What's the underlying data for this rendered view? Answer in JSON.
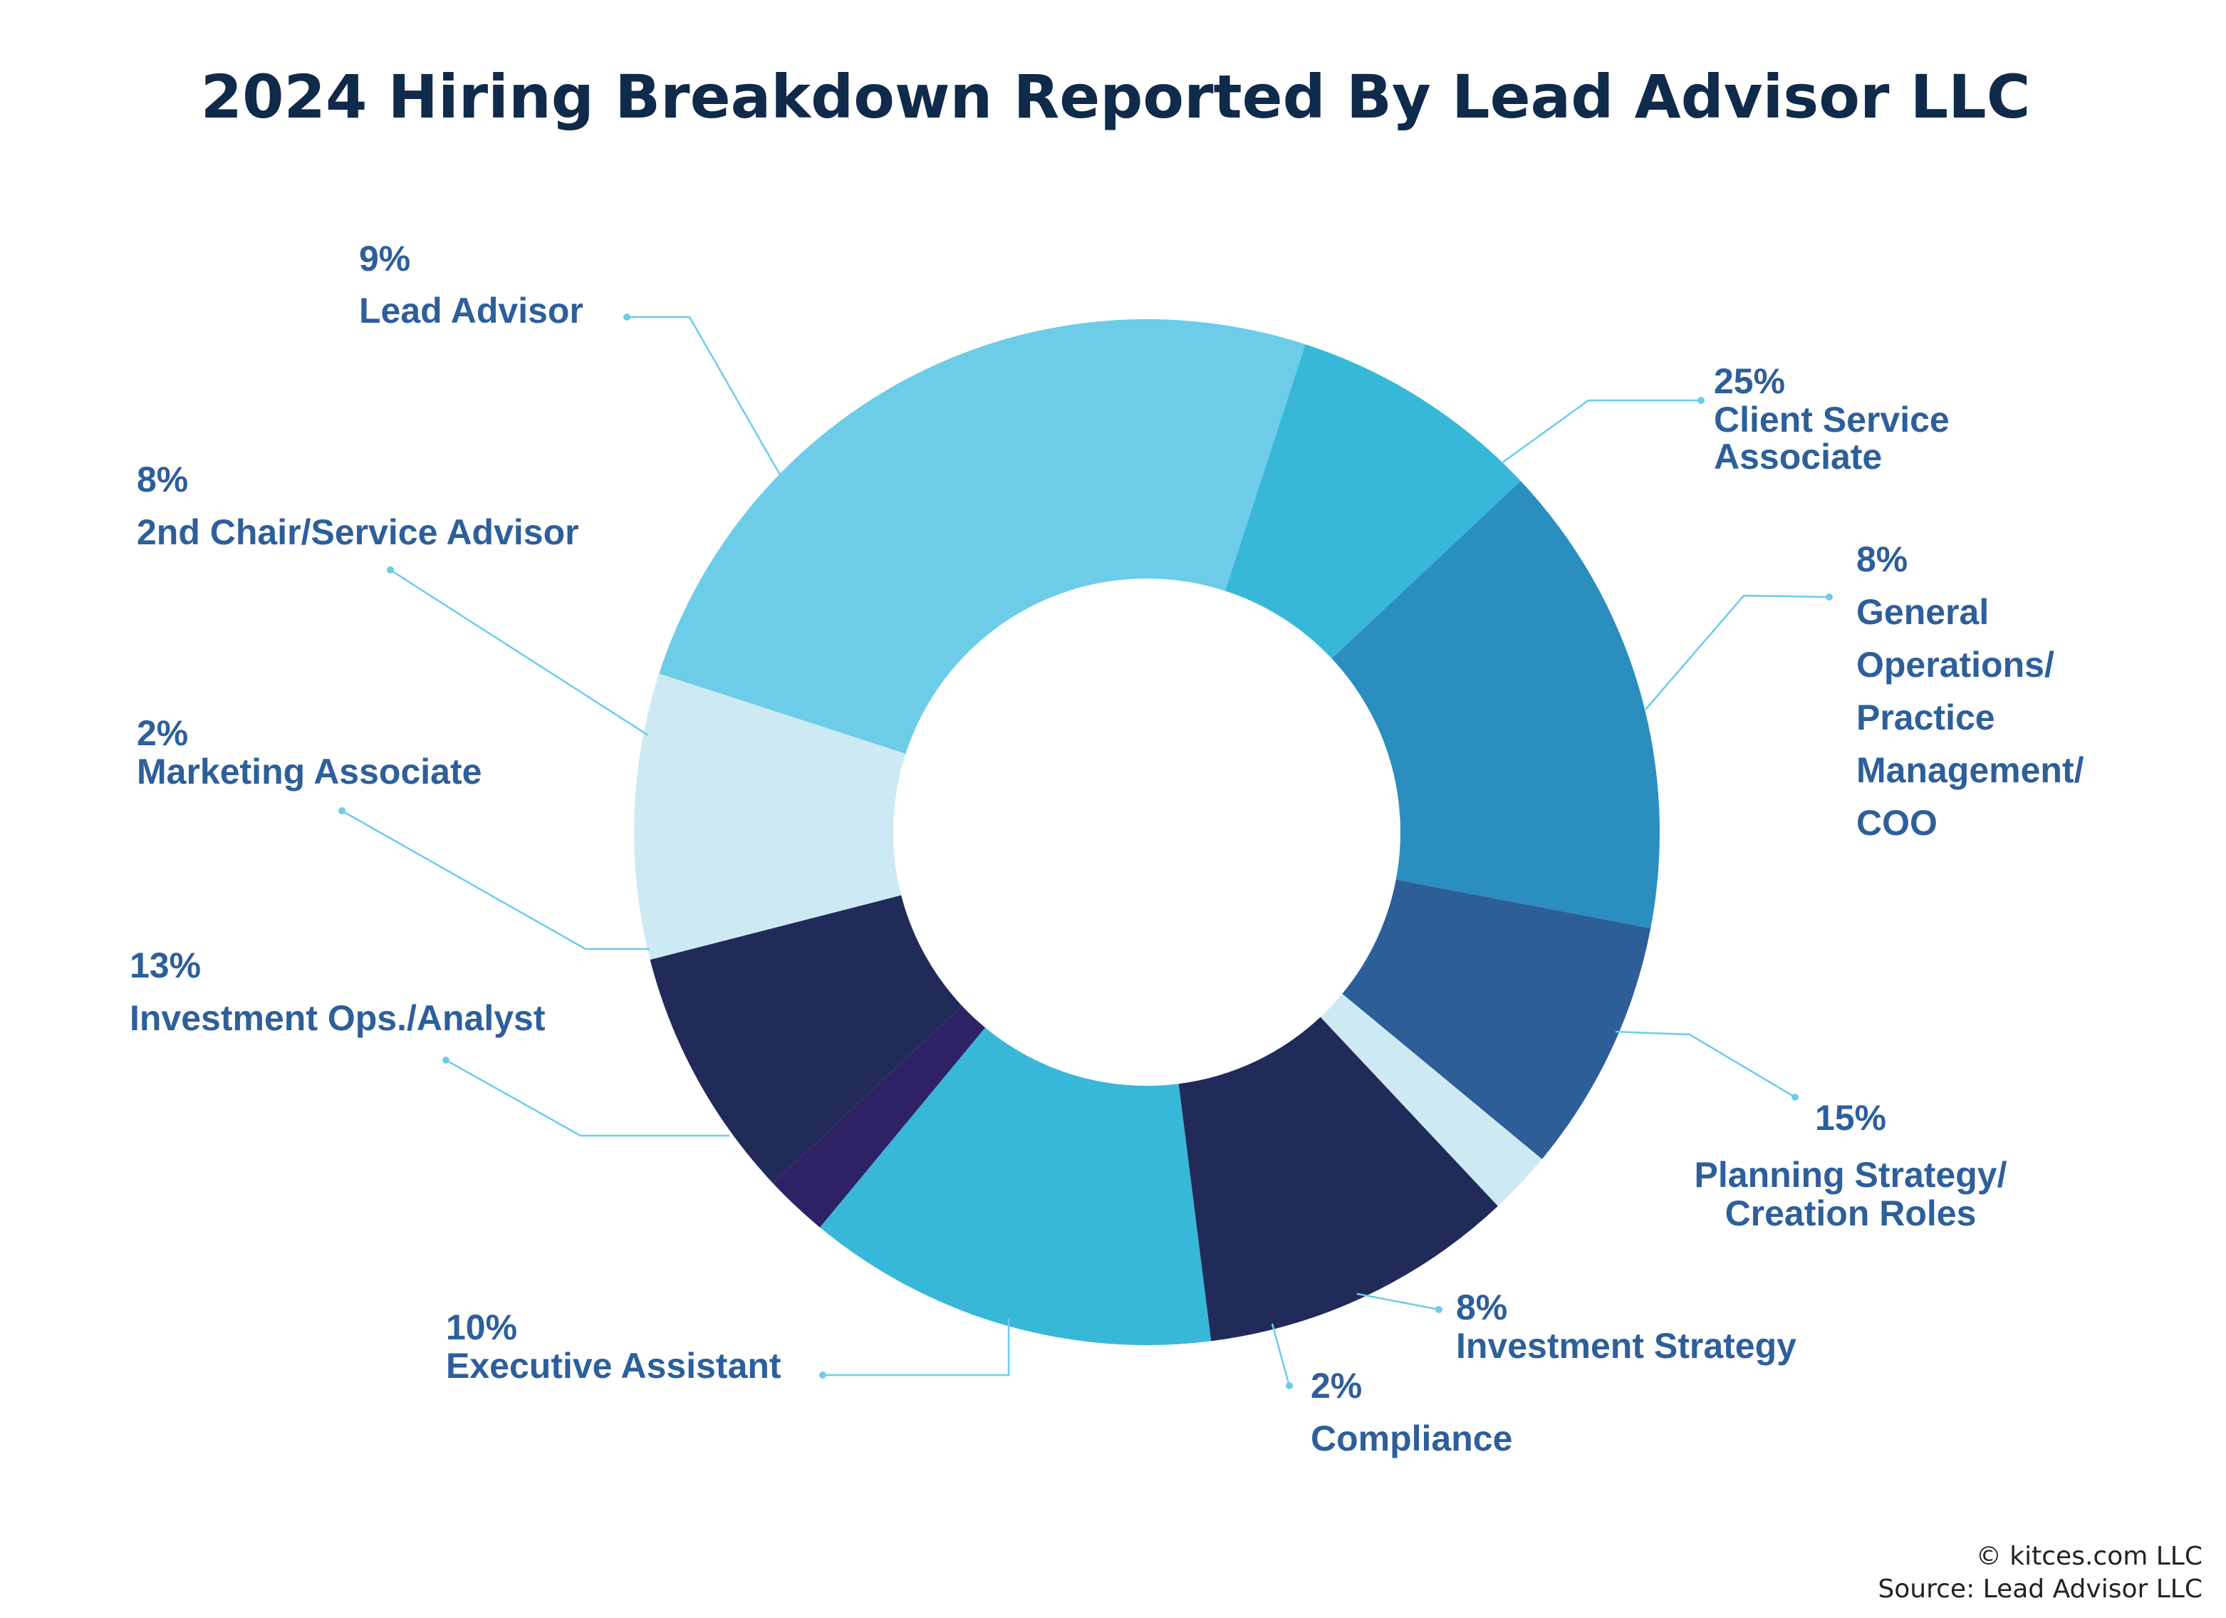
{
  "chart_data": {
    "type": "pie",
    "title": "2024 Hiring Breakdown Reported By Lead Advisor LLC",
    "donut": true,
    "series": [
      {
        "values": [
          {
            "label": "Client Service Associate",
            "percent_label": "25%",
            "value": 25,
            "color": "#6dcde8"
          },
          {
            "label": "General Operations/ Practice Management/ COO",
            "percent_label": "8%",
            "value": 8,
            "color": "#38b8d8"
          },
          {
            "label": "Planning Strategy/ Creation Roles",
            "percent_label": "15%",
            "value": 15,
            "color": "#2a8ebe"
          },
          {
            "label": "Investment Strategy",
            "percent_label": "8%",
            "value": 8,
            "color": "#2d5e98"
          },
          {
            "label": "Compliance",
            "percent_label": "2%",
            "value": 2,
            "color": "#cdeaf4"
          },
          {
            "label": "Executive Assistant",
            "percent_label": "10%",
            "value": 10,
            "color": "#212b5a"
          },
          {
            "label": "Investment Ops./Analyst",
            "percent_label": "13%",
            "value": 13,
            "color": "#38b8d8"
          },
          {
            "label": "Marketing Associate",
            "percent_label": "2%",
            "value": 2,
            "color": "#2f2166"
          },
          {
            "label": "2nd Chair/Service Advisor",
            "percent_label": "8%",
            "value": 8,
            "color": "#212b5a"
          },
          {
            "label": "Lead Advisor",
            "percent_label": "9%",
            "value": 9,
            "color": "#cdeaf4"
          }
        ]
      }
    ]
  },
  "labels": {
    "client_service": {
      "pct": "25%",
      "line1": "Client Service",
      "line2": "Associate"
    },
    "general_ops": {
      "pct": "8%",
      "line1": "General",
      "line2": "Operations/",
      "line3": "Practice",
      "line4": "Management/",
      "line5": "COO"
    },
    "planning": {
      "pct": "15%",
      "line1": "Planning Strategy/",
      "line2": "Creation Roles"
    },
    "investment_strategy": {
      "pct": "8%",
      "line1": "Investment Strategy"
    },
    "compliance": {
      "pct": "2%",
      "line1": "Compliance"
    },
    "executive_assistant": {
      "pct": "10%",
      "line1": "Executive Assistant"
    },
    "investment_ops": {
      "pct": "13%",
      "line1": "Investment Ops./Analyst"
    },
    "marketing": {
      "pct": "2%",
      "line1": "Marketing Associate"
    },
    "second_chair": {
      "pct": "8%",
      "line1": "2nd Chair/Service Advisor"
    },
    "lead_advisor": {
      "pct": "9%",
      "line1": "Lead Advisor"
    }
  },
  "footer": {
    "copyright": "© kitces.com LLC",
    "source": "Source: Lead Advisor LLC"
  }
}
